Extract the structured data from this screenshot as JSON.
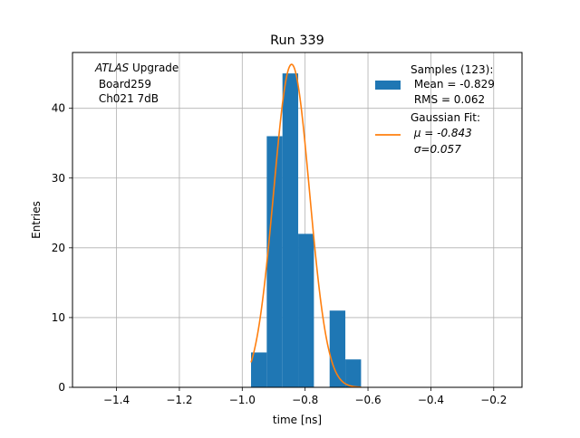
{
  "chart_data": {
    "type": "bar",
    "title": "Run 339",
    "xlabel": "time [ns]",
    "ylabel": "Entries",
    "xlim": [
      -1.54,
      -0.11
    ],
    "ylim": [
      0,
      48
    ],
    "xticks": [
      -1.4,
      -1.2,
      -1.0,
      -0.8,
      -0.6,
      -0.4,
      -0.2
    ],
    "xtick_labels": [
      "−1.4",
      "−1.2",
      "−1.0",
      "−0.8",
      "−0.6",
      "−0.4",
      "−0.2"
    ],
    "yticks": [
      0,
      10,
      20,
      30,
      40
    ],
    "ytick_labels": [
      "0",
      "10",
      "20",
      "30",
      "40"
    ],
    "grid": true,
    "bars_color": "#1f77b4",
    "fit_color": "#ff7f0e",
    "histogram": {
      "name": "Samples (123):",
      "bin_edges": [
        -0.972,
        -0.922,
        -0.872,
        -0.822,
        -0.772,
        -0.722,
        -0.672,
        -0.622
      ],
      "counts": [
        5,
        36,
        45,
        22,
        0,
        11,
        4
      ]
    },
    "fit": {
      "name": "Gaussian Fit:",
      "mu": -0.843,
      "sigma": 0.057,
      "amplitude": 46.3,
      "x_range": [
        -0.972,
        -0.622
      ]
    },
    "annotation": {
      "italic_part": "ATLAS",
      "line1_rest": " Upgrade",
      "line2": " Board259",
      "line3": " Ch021 7dB"
    },
    "legend": {
      "placement": "top-right",
      "samples_lines": [
        "Samples (123):",
        " Mean = -0.829",
        " RMS = 0.062"
      ],
      "fit_lines": [
        "Gaussian Fit:",
        " μ = -0.843",
        " σ=0.057"
      ]
    }
  }
}
